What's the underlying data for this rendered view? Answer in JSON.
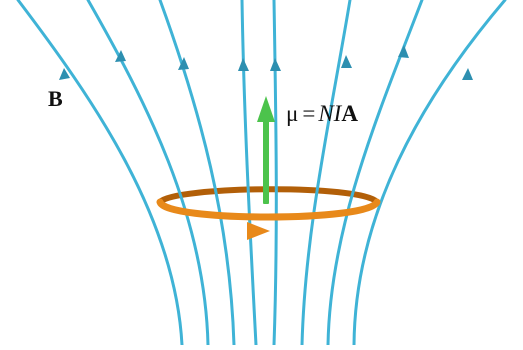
{
  "figure": {
    "field_label": "B",
    "formula": {
      "symbol": "μ",
      "equals": "=",
      "variables": "NI",
      "vector": "A"
    }
  },
  "colors": {
    "field_line": "#3fb3d6",
    "field_line_dark": "#2d8fb0",
    "loop": "#e8891a",
    "loop_dark": "#b25f08",
    "moment_arrow": "#4cc34c",
    "moment_arrow_dark": "#2a8f2a",
    "text": "#111111"
  },
  "icons": {
    "field_line_arrow": "up-arrowhead-icon",
    "current_arrow": "right-arrowhead-icon",
    "moment_vector": "up-arrow-icon"
  }
}
